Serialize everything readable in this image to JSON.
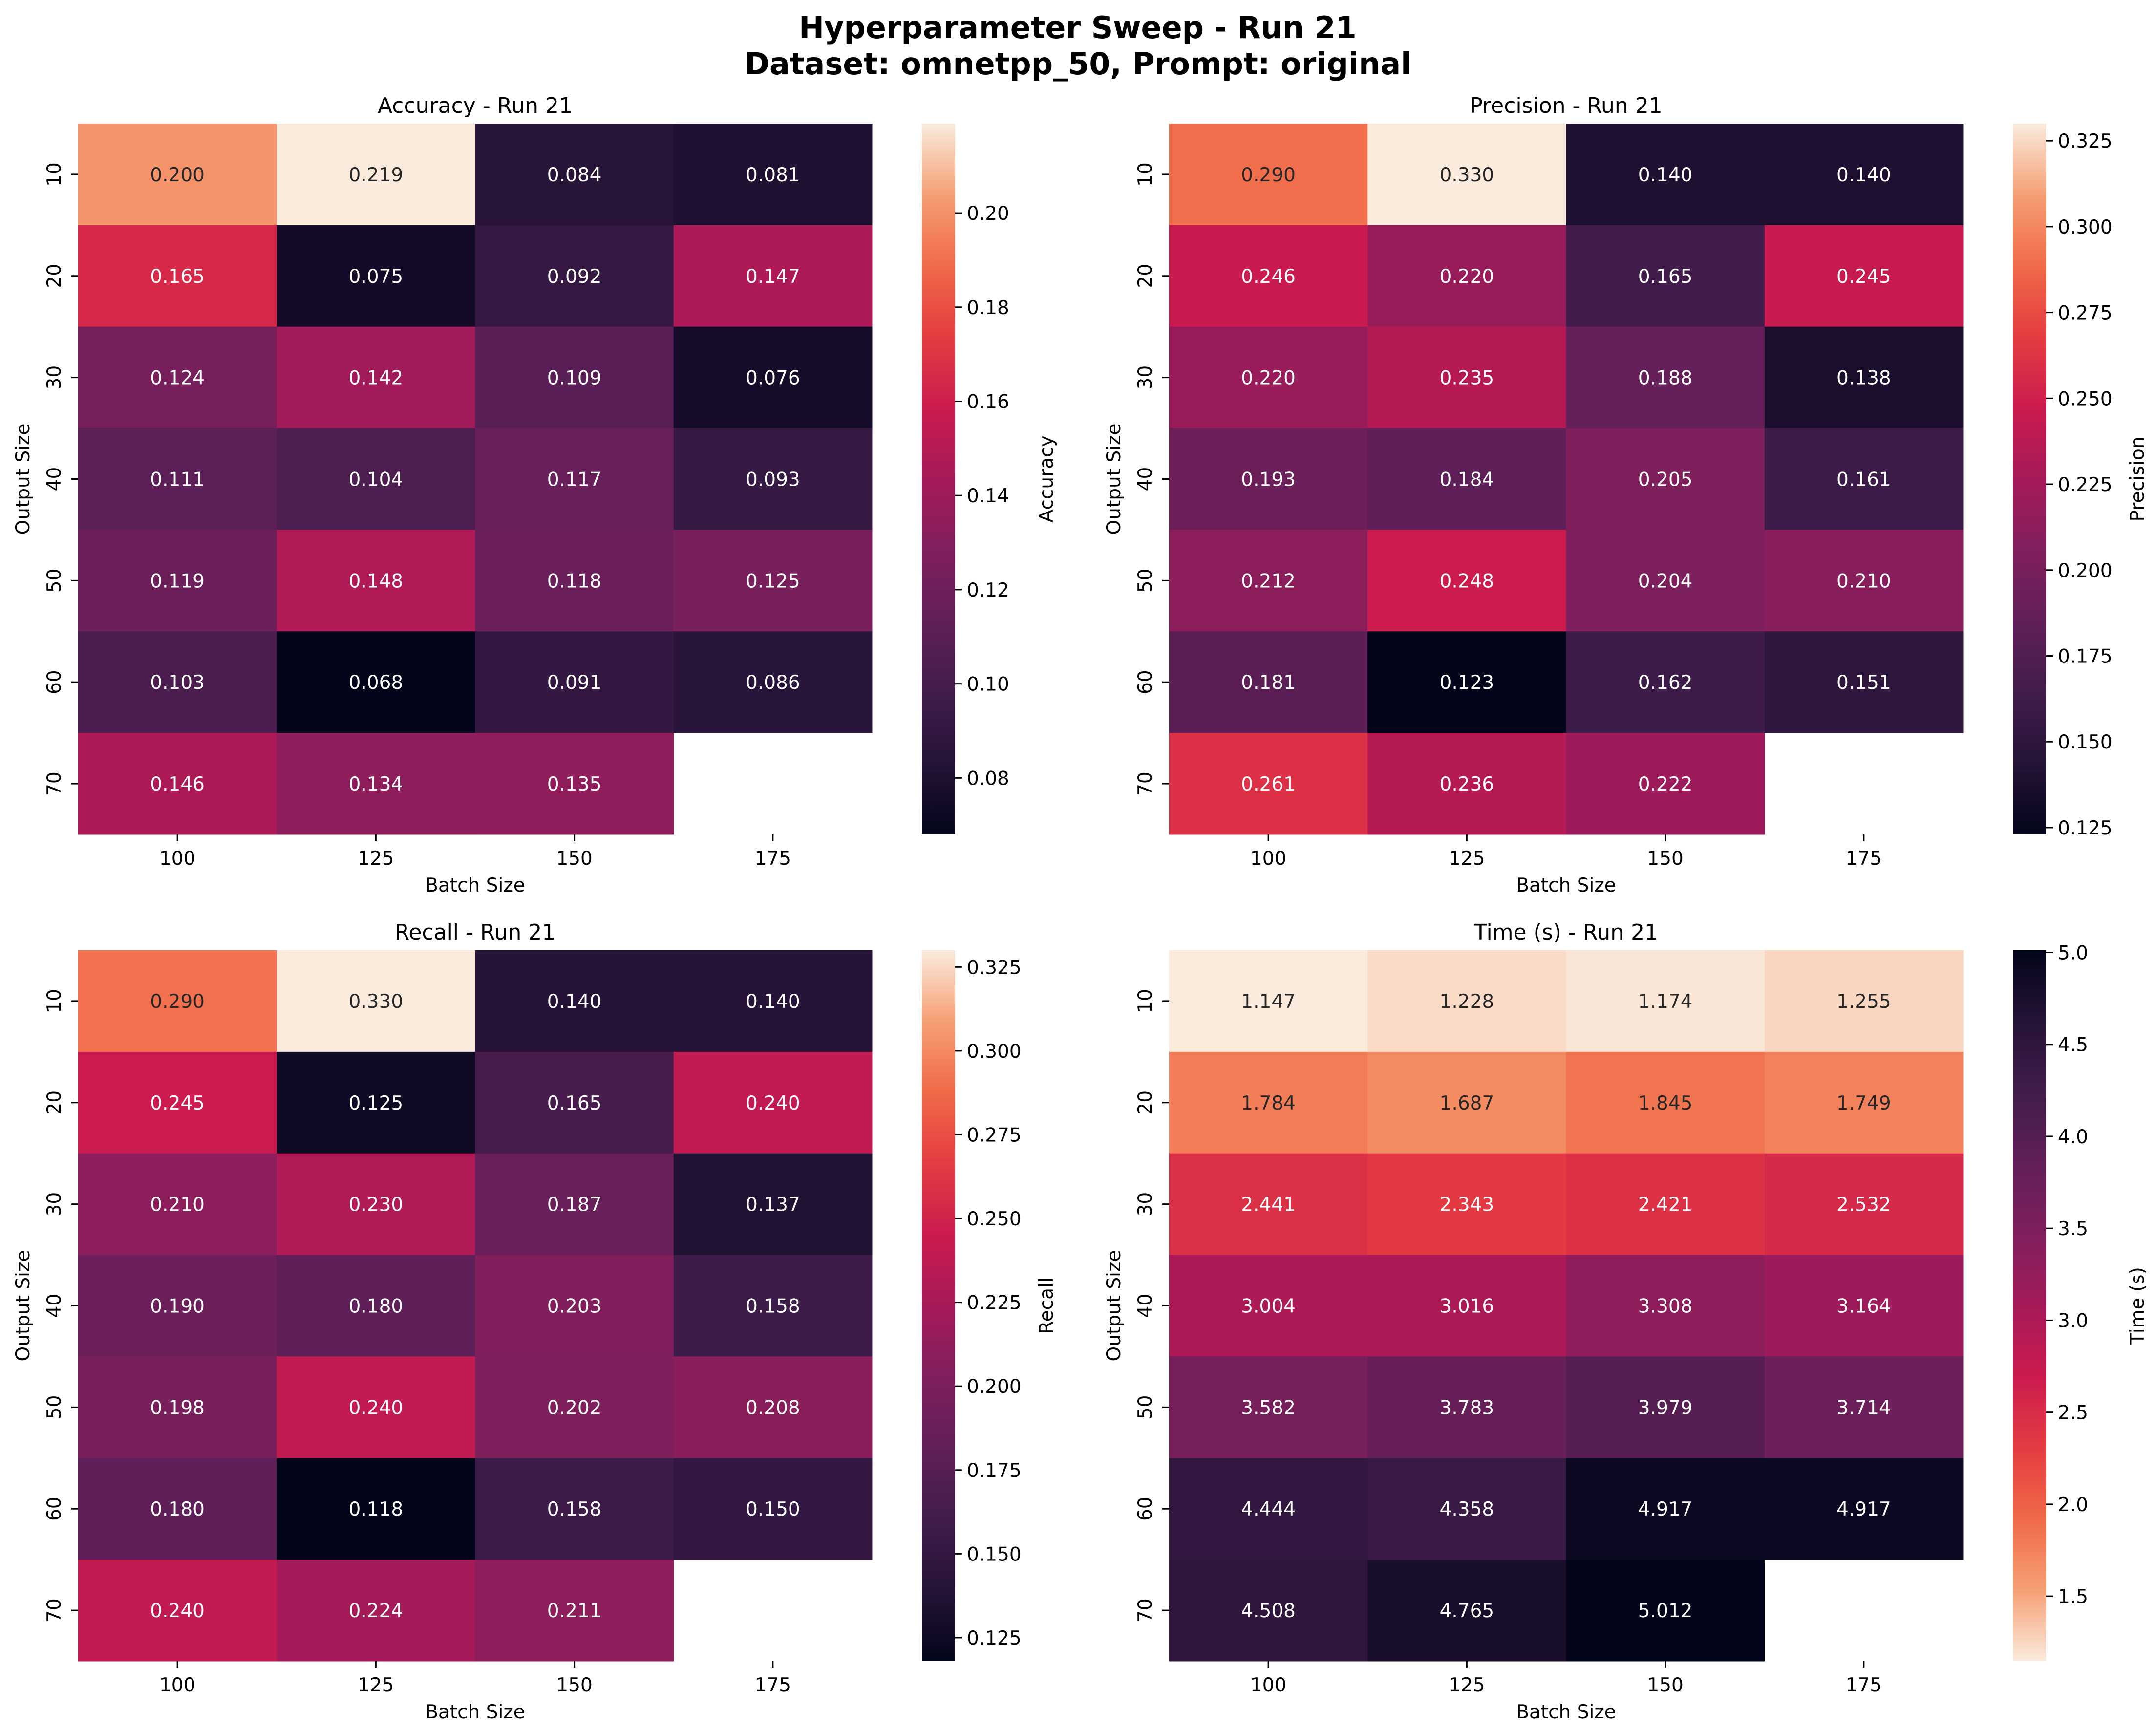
{
  "title_line1": "Hyperparameter Sweep - Run 21",
  "title_line2": "Dataset: omnetpp_50, Prompt: original",
  "chart_data": [
    {
      "type": "heatmap",
      "title": "Accuracy - Run 21",
      "xlabel": "Batch Size",
      "ylabel": "Output Size",
      "colorbar_label": "Accuracy",
      "x": [
        "100",
        "125",
        "150",
        "175"
      ],
      "y": [
        "10",
        "20",
        "30",
        "40",
        "50",
        "60",
        "70"
      ],
      "values": [
        [
          0.2,
          0.219,
          0.084,
          0.081
        ],
        [
          0.165,
          0.075,
          0.092,
          0.147
        ],
        [
          0.124,
          0.142,
          0.109,
          0.076
        ],
        [
          0.111,
          0.104,
          0.117,
          0.093
        ],
        [
          0.119,
          0.148,
          0.118,
          0.125
        ],
        [
          0.103,
          0.068,
          0.091,
          0.086
        ],
        [
          0.146,
          0.134,
          0.135,
          null
        ]
      ],
      "vmin": 0.068,
      "vmax": 0.219,
      "colorbar_ticks": [
        "0.08",
        "0.10",
        "0.12",
        "0.14",
        "0.16",
        "0.18",
        "0.20"
      ],
      "colormap": "rocket",
      "value_format": "3f"
    },
    {
      "type": "heatmap",
      "title": "Precision - Run 21",
      "xlabel": "Batch Size",
      "ylabel": "Output Size",
      "colorbar_label": "Precision",
      "x": [
        "100",
        "125",
        "150",
        "175"
      ],
      "y": [
        "10",
        "20",
        "30",
        "40",
        "50",
        "60",
        "70"
      ],
      "values": [
        [
          0.29,
          0.33,
          0.14,
          0.14
        ],
        [
          0.246,
          0.22,
          0.165,
          0.245
        ],
        [
          0.22,
          0.235,
          0.188,
          0.138
        ],
        [
          0.193,
          0.184,
          0.205,
          0.161
        ],
        [
          0.212,
          0.248,
          0.204,
          0.21
        ],
        [
          0.181,
          0.123,
          0.162,
          0.151
        ],
        [
          0.261,
          0.236,
          0.222,
          null
        ]
      ],
      "vmin": 0.123,
      "vmax": 0.33,
      "colorbar_ticks": [
        "0.125",
        "0.150",
        "0.175",
        "0.200",
        "0.225",
        "0.250",
        "0.275",
        "0.300",
        "0.325"
      ],
      "colormap": "rocket",
      "value_format": "3f"
    },
    {
      "type": "heatmap",
      "title": "Recall - Run 21",
      "xlabel": "Batch Size",
      "ylabel": "Output Size",
      "colorbar_label": "Recall",
      "x": [
        "100",
        "125",
        "150",
        "175"
      ],
      "y": [
        "10",
        "20",
        "30",
        "40",
        "50",
        "60",
        "70"
      ],
      "values": [
        [
          0.29,
          0.33,
          0.14,
          0.14
        ],
        [
          0.245,
          0.125,
          0.165,
          0.24
        ],
        [
          0.21,
          0.23,
          0.187,
          0.137
        ],
        [
          0.19,
          0.18,
          0.203,
          0.158
        ],
        [
          0.198,
          0.24,
          0.202,
          0.208
        ],
        [
          0.18,
          0.118,
          0.158,
          0.15
        ],
        [
          0.24,
          0.224,
          0.211,
          null
        ]
      ],
      "vmin": 0.118,
      "vmax": 0.33,
      "colorbar_ticks": [
        "0.125",
        "0.150",
        "0.175",
        "0.200",
        "0.225",
        "0.250",
        "0.275",
        "0.300",
        "0.325"
      ],
      "colormap": "rocket",
      "value_format": "3f"
    },
    {
      "type": "heatmap",
      "title": "Time (s) - Run 21",
      "xlabel": "Batch Size",
      "ylabel": "Output Size",
      "colorbar_label": "Time (s)",
      "x": [
        "100",
        "125",
        "150",
        "175"
      ],
      "y": [
        "10",
        "20",
        "30",
        "40",
        "50",
        "60",
        "70"
      ],
      "values": [
        [
          1.147,
          1.228,
          1.174,
          1.255
        ],
        [
          1.784,
          1.687,
          1.845,
          1.749
        ],
        [
          2.441,
          2.343,
          2.421,
          2.532
        ],
        [
          3.004,
          3.016,
          3.308,
          3.164
        ],
        [
          3.582,
          3.783,
          3.979,
          3.714
        ],
        [
          4.444,
          4.358,
          4.917,
          4.917
        ],
        [
          4.508,
          4.765,
          5.012,
          null
        ]
      ],
      "vmin": 1.147,
      "vmax": 5.012,
      "colorbar_ticks": [
        "1.5",
        "2.0",
        "2.5",
        "3.0",
        "3.5",
        "4.0",
        "4.5",
        "5.0"
      ],
      "colormap": "rocket_r",
      "value_format": "3f"
    }
  ]
}
